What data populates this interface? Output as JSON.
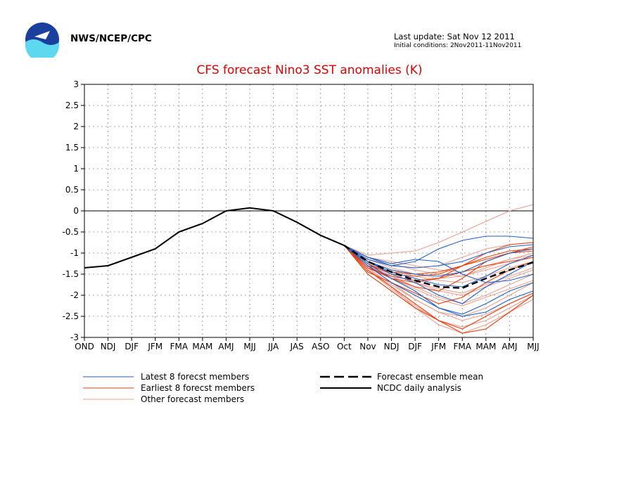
{
  "header": {
    "org": "NWS/NCEP/CPC",
    "last_update": "Last update: Sat Nov 12 2011",
    "initial_conditions": "Initial conditions: 2Nov2011-11Nov2011"
  },
  "colors": {
    "title": "#e00000",
    "latest": "#2060c8",
    "earliest": "#e84010",
    "other": "#e8a090",
    "analysis": "#000000",
    "ensemble_mean": "#000000"
  },
  "chart_data": {
    "type": "line",
    "title": "CFS forecast Nino3 SST anomalies (K)",
    "xlabel": "",
    "ylabel": "",
    "categories": [
      "OND",
      "NDJ",
      "DJF",
      "JFM",
      "FMA",
      "MAM",
      "AMJ",
      "MJJ",
      "JJA",
      "JAS",
      "ASO",
      "Oct",
      "Nov",
      "NDJ",
      "DJF",
      "JFM",
      "FMA",
      "MAM",
      "AMJ",
      "MJJ"
    ],
    "ylim": [
      -3,
      3
    ],
    "yticks": [
      "3",
      "2.5",
      "2",
      "1.5",
      "1",
      "0.5",
      "0",
      "-0.5",
      "-1",
      "-1.5",
      "-2",
      "-2.5",
      "-3"
    ],
    "grid": true,
    "legend_position": "bottom",
    "legend": [
      {
        "label": "Latest 8 forecst members",
        "style": "blue thin"
      },
      {
        "label": "Earliest 8 forecst members",
        "style": "red thin"
      },
      {
        "label": "Other forecast members",
        "style": "light red thin"
      },
      {
        "label": "Forecast ensemble mean",
        "style": "black dashed"
      },
      {
        "label": "NCDC daily analysis",
        "style": "black solid"
      }
    ],
    "analysis": {
      "name": "NCDC daily analysis",
      "x": [
        0,
        1,
        2,
        3,
        4,
        5,
        6,
        7,
        8,
        9,
        10,
        11
      ],
      "values": [
        -1.35,
        -1.3,
        -1.1,
        -0.9,
        -0.5,
        -0.3,
        0.0,
        0.07,
        0.0,
        -0.27,
        -0.58,
        -0.82
      ]
    },
    "ensemble_mean": {
      "name": "Forecast ensemble mean",
      "x": [
        11,
        12,
        13,
        14,
        15,
        16,
        17,
        18,
        19
      ],
      "values": [
        -0.82,
        -1.2,
        -1.45,
        -1.65,
        -1.8,
        -1.83,
        -1.6,
        -1.4,
        -1.22
      ]
    },
    "series": [
      {
        "group": "latest",
        "x": [
          11,
          12,
          13,
          14,
          15,
          16,
          17,
          18,
          19
        ],
        "values": [
          -0.82,
          -1.15,
          -1.3,
          -1.2,
          -0.9,
          -0.7,
          -0.6,
          -0.6,
          -0.65
        ]
      },
      {
        "group": "latest",
        "x": [
          11,
          12,
          13,
          14,
          15,
          16,
          17,
          18,
          19
        ],
        "values": [
          -0.82,
          -1.2,
          -1.5,
          -1.7,
          -2.0,
          -2.2,
          -1.8,
          -1.5,
          -1.2
        ]
      },
      {
        "group": "latest",
        "x": [
          11,
          12,
          13,
          14,
          15,
          16,
          17,
          18,
          19
        ],
        "values": [
          -0.82,
          -1.25,
          -1.6,
          -1.9,
          -2.3,
          -2.5,
          -2.4,
          -2.1,
          -1.9
        ]
      },
      {
        "group": "latest",
        "x": [
          11,
          12,
          13,
          14,
          15,
          16,
          17,
          18,
          19
        ],
        "values": [
          -0.82,
          -1.1,
          -1.3,
          -1.35,
          -1.3,
          -1.2,
          -1.0,
          -0.85,
          -0.8
        ]
      },
      {
        "group": "latest",
        "x": [
          11,
          12,
          13,
          14,
          15,
          16,
          17,
          18,
          19
        ],
        "values": [
          -0.82,
          -1.2,
          -1.45,
          -1.6,
          -1.75,
          -1.8,
          -1.55,
          -1.25,
          -1.05
        ]
      },
      {
        "group": "latest",
        "x": [
          11,
          12,
          13,
          14,
          15,
          16,
          17,
          18,
          19
        ],
        "values": [
          -0.82,
          -1.3,
          -1.7,
          -2.0,
          -2.3,
          -2.45,
          -2.2,
          -1.9,
          -1.7
        ]
      },
      {
        "group": "latest",
        "x": [
          11,
          12,
          13,
          14,
          15,
          16,
          17,
          18,
          19
        ],
        "values": [
          -0.82,
          -1.1,
          -1.25,
          -1.15,
          -1.2,
          -1.5,
          -1.7,
          -1.65,
          -1.5
        ]
      },
      {
        "group": "latest",
        "x": [
          11,
          12,
          13,
          14,
          15,
          16,
          17,
          18,
          19
        ],
        "values": [
          -0.82,
          -1.2,
          -1.4,
          -1.5,
          -1.55,
          -1.45,
          -1.2,
          -1.0,
          -0.9
        ]
      },
      {
        "group": "earliest",
        "x": [
          11,
          12,
          13,
          14,
          15,
          16,
          17,
          18,
          19
        ],
        "values": [
          -0.82,
          -1.3,
          -1.6,
          -1.8,
          -1.9,
          -1.6,
          -1.2,
          -1.0,
          -0.85
        ]
      },
      {
        "group": "earliest",
        "x": [
          11,
          12,
          13,
          14,
          15,
          16,
          17,
          18,
          19
        ],
        "values": [
          -0.82,
          -1.4,
          -1.8,
          -2.2,
          -2.6,
          -2.9,
          -2.8,
          -2.4,
          -2.0
        ]
      },
      {
        "group": "earliest",
        "x": [
          11,
          12,
          13,
          14,
          15,
          16,
          17,
          18,
          19
        ],
        "values": [
          -0.82,
          -1.35,
          -1.6,
          -1.7,
          -1.6,
          -1.3,
          -1.0,
          -0.8,
          -0.75
        ]
      },
      {
        "group": "earliest",
        "x": [
          11,
          12,
          13,
          14,
          15,
          16,
          17,
          18,
          19
        ],
        "values": [
          -0.82,
          -1.25,
          -1.5,
          -1.55,
          -1.5,
          -1.3,
          -1.1,
          -0.95,
          -0.9
        ]
      },
      {
        "group": "earliest",
        "x": [
          11,
          12,
          13,
          14,
          15,
          16,
          17,
          18,
          19
        ],
        "values": [
          -0.82,
          -1.45,
          -1.7,
          -1.95,
          -2.2,
          -2.05,
          -1.7,
          -1.4,
          -1.2
        ]
      },
      {
        "group": "earliest",
        "x": [
          11,
          12,
          13,
          14,
          15,
          16,
          17,
          18,
          19
        ],
        "values": [
          -0.82,
          -1.35,
          -1.55,
          -1.65,
          -1.6,
          -1.45,
          -1.3,
          -1.2,
          -1.1
        ]
      },
      {
        "group": "earliest",
        "x": [
          11,
          12,
          13,
          14,
          15,
          16,
          17,
          18,
          19
        ],
        "values": [
          -0.82,
          -1.5,
          -1.9,
          -2.3,
          -2.6,
          -2.8,
          -2.5,
          -2.2,
          -1.95
        ]
      },
      {
        "group": "earliest",
        "x": [
          11,
          12,
          13,
          14,
          15,
          16,
          17,
          18,
          19
        ],
        "values": [
          -0.82,
          -1.3,
          -1.45,
          -1.5,
          -1.45,
          -1.3,
          -1.15,
          -1.0,
          -0.95
        ]
      },
      {
        "group": "other",
        "x": [
          11,
          12,
          13,
          14,
          15,
          16,
          17,
          18,
          19
        ],
        "values": [
          -0.82,
          -1.05,
          -1.0,
          -0.95,
          -0.75,
          -0.5,
          -0.25,
          0.0,
          0.15
        ]
      },
      {
        "group": "other",
        "x": [
          11,
          12,
          13,
          14,
          15,
          16,
          17,
          18,
          19
        ],
        "values": [
          -0.82,
          -1.15,
          -1.3,
          -1.35,
          -1.3,
          -1.1,
          -0.9,
          -0.8,
          -0.75
        ]
      },
      {
        "group": "other",
        "x": [
          11,
          12,
          13,
          14,
          15,
          16,
          17,
          18,
          19
        ],
        "values": [
          -0.82,
          -1.2,
          -1.5,
          -1.7,
          -1.9,
          -2.0,
          -1.8,
          -1.6,
          -1.4
        ]
      },
      {
        "group": "other",
        "x": [
          11,
          12,
          13,
          14,
          15,
          16,
          17,
          18,
          19
        ],
        "values": [
          -0.82,
          -1.3,
          -1.7,
          -2.1,
          -2.4,
          -2.5,
          -2.3,
          -2.0,
          -1.7
        ]
      },
      {
        "group": "other",
        "x": [
          11,
          12,
          13,
          14,
          15,
          16,
          17,
          18,
          19
        ],
        "values": [
          -0.82,
          -1.35,
          -1.8,
          -2.3,
          -2.7,
          -2.9,
          -2.7,
          -2.4,
          -2.1
        ]
      },
      {
        "group": "other",
        "x": [
          11,
          12,
          13,
          14,
          15,
          16,
          17,
          18,
          19
        ],
        "values": [
          -0.82,
          -1.25,
          -1.55,
          -1.8,
          -2.05,
          -2.2,
          -2.0,
          -1.75,
          -1.5
        ]
      },
      {
        "group": "other",
        "x": [
          11,
          12,
          13,
          14,
          15,
          16,
          17,
          18,
          19
        ],
        "values": [
          -0.82,
          -1.1,
          -1.2,
          -1.3,
          -1.4,
          -1.45,
          -1.3,
          -1.15,
          -1.05
        ]
      },
      {
        "group": "other",
        "x": [
          11,
          12,
          13,
          14,
          15,
          16,
          17,
          18,
          19
        ],
        "values": [
          -0.82,
          -1.3,
          -1.6,
          -1.85,
          -2.1,
          -2.25,
          -2.05,
          -1.85,
          -1.65
        ]
      },
      {
        "group": "other",
        "x": [
          11,
          12,
          13,
          14,
          15,
          16,
          17,
          18,
          19
        ],
        "values": [
          -0.82,
          -1.2,
          -1.4,
          -1.55,
          -1.65,
          -1.7,
          -1.55,
          -1.35,
          -1.2
        ]
      },
      {
        "group": "other",
        "x": [
          11,
          12,
          13,
          14,
          15,
          16,
          17,
          18,
          19
        ],
        "values": [
          -0.82,
          -1.4,
          -1.85,
          -2.25,
          -2.6,
          -2.75,
          -2.6,
          -2.3,
          -2.0
        ]
      },
      {
        "group": "other",
        "x": [
          11,
          12,
          13,
          14,
          15,
          16,
          17,
          18,
          19
        ],
        "values": [
          -0.82,
          -1.15,
          -1.35,
          -1.5,
          -1.6,
          -1.55,
          -1.35,
          -1.15,
          -1.0
        ]
      },
      {
        "group": "other",
        "x": [
          11,
          12,
          13,
          14,
          15,
          16,
          17,
          18,
          19
        ],
        "values": [
          -0.82,
          -1.25,
          -1.5,
          -1.7,
          -1.85,
          -1.95,
          -1.75,
          -1.55,
          -1.35
        ]
      },
      {
        "group": "other",
        "x": [
          11,
          12,
          13,
          14,
          15,
          16,
          17,
          18,
          19
        ],
        "values": [
          -0.82,
          -1.35,
          -1.75,
          -2.1,
          -2.4,
          -2.6,
          -2.45,
          -2.2,
          -1.95
        ]
      },
      {
        "group": "other",
        "x": [
          11,
          12,
          13,
          14,
          15,
          16,
          17,
          18,
          19
        ],
        "values": [
          -0.82,
          -1.1,
          -1.25,
          -1.4,
          -1.5,
          -1.55,
          -1.4,
          -1.25,
          -1.1
        ]
      }
    ]
  }
}
